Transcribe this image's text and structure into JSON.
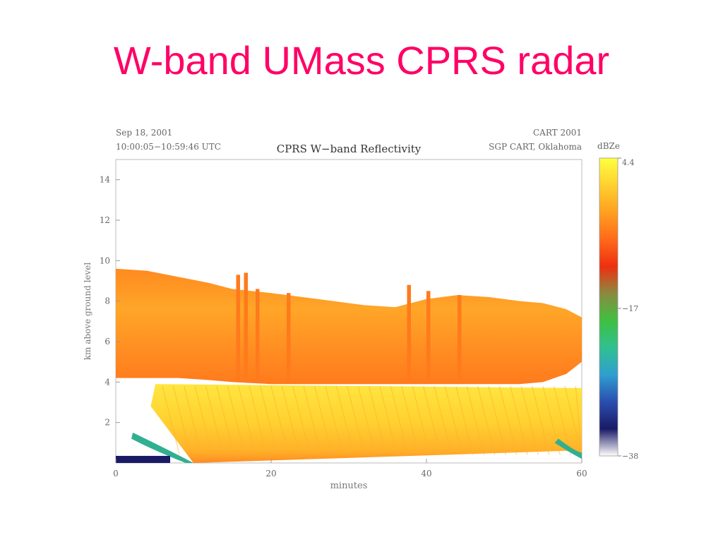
{
  "slide": {
    "title": "W-band UMass CPRS radar"
  },
  "chart_data": {
    "type": "heatmap",
    "title": "CPRS W−band Reflectivity",
    "header_left": [
      "Sep 18, 2001",
      "10:00:05−10:59:46 UTC"
    ],
    "header_right": [
      "CART 2001",
      "SGP CART, Oklahoma"
    ],
    "xlabel": "minutes",
    "ylabel": "km above ground level",
    "xlim": [
      0,
      60
    ],
    "ylim": [
      0,
      15
    ],
    "x_ticks": [
      0,
      20,
      40,
      60
    ],
    "y_ticks": [
      2,
      4,
      6,
      8,
      10,
      12,
      14
    ],
    "colorbar": {
      "label": "dBZe",
      "range": [
        -38,
        4.4
      ],
      "tick_values": [
        4.4,
        -17,
        -38
      ],
      "tick_labels": [
        "4.4",
        "−17",
        "−38"
      ],
      "colors": [
        "#ffffff",
        "#1a1a66",
        "#2a4fb0",
        "#2f9fd0",
        "#30c090",
        "#3fc040",
        "#8a8a40",
        "#ee3010",
        "#ff6a1a",
        "#ffa020",
        "#ffd030",
        "#ffff40"
      ]
    },
    "layers": [
      {
        "name": "upper cloud",
        "top_km": [
          9.6,
          9.5,
          9.2,
          8.9,
          8.6,
          8.4,
          8.2,
          8.0,
          7.8,
          7.7,
          8.1,
          8.3,
          8.2,
          8.0,
          7.9,
          7.6,
          7.2
        ],
        "base_km": [
          4.2,
          4.2,
          4.2,
          4.1,
          4.0,
          3.9,
          3.9,
          3.9,
          3.9,
          3.9,
          3.9,
          3.9,
          3.9,
          3.9,
          4.0,
          4.4,
          5.0
        ],
        "x_min": [
          0,
          4,
          8,
          12,
          15,
          20,
          24,
          28,
          32,
          36,
          40,
          44,
          48,
          52,
          55,
          58,
          60
        ]
      },
      {
        "name": "fall streaks",
        "top_km": 3.9,
        "base_km": 0.0,
        "x_range": [
          4.5,
          60
        ]
      }
    ],
    "peak_towers_x_min": [
      15.5,
      16.5,
      18.0,
      22.0,
      37.5,
      40.0,
      44.0
    ],
    "peak_towers_top_km": [
      9.3,
      9.4,
      8.6,
      8.4,
      8.8,
      8.5,
      8.3
    ]
  }
}
